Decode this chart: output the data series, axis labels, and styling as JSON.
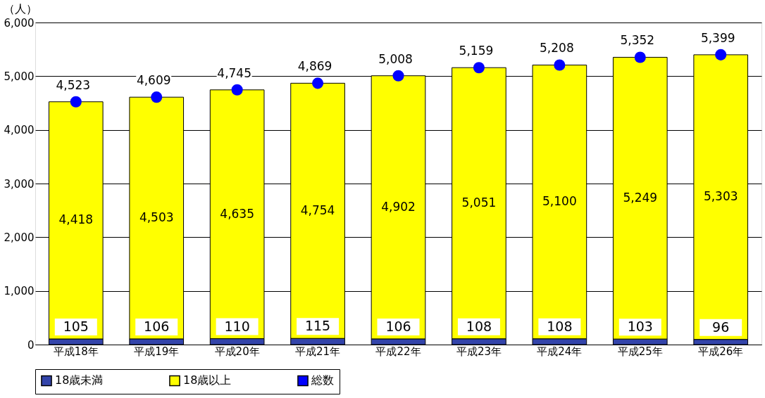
{
  "chart_data": {
    "type": "bar",
    "stacked": true,
    "ylabel": "（人）",
    "categories": [
      "平成18年",
      "平成19年",
      "平成20年",
      "平成21年",
      "平成22年",
      "平成23年",
      "平成24年",
      "平成25年",
      "平成26年"
    ],
    "series": [
      {
        "name": "18歳未満",
        "color": "#3344aa",
        "values": [
          105,
          106,
          110,
          115,
          106,
          108,
          108,
          103,
          96
        ],
        "value_labels": [
          "105",
          "106",
          "110",
          "115",
          "106",
          "108",
          "108",
          "103",
          "96"
        ]
      },
      {
        "name": "18歳以上",
        "color": "#ffff00",
        "values": [
          4418,
          4503,
          4635,
          4754,
          4902,
          5051,
          5100,
          5249,
          5303
        ],
        "value_labels": [
          "4,418",
          "4,503",
          "4,635",
          "4,754",
          "4,902",
          "5,051",
          "5,100",
          "5,249",
          "5,303"
        ]
      },
      {
        "name": "総数",
        "type": "scatter",
        "color": "#0000ff",
        "marker": "circle",
        "values": [
          4523,
          4609,
          4745,
          4869,
          5008,
          5159,
          5208,
          5352,
          5399
        ],
        "value_labels": [
          "4,523",
          "4,609",
          "4,745",
          "4,869",
          "5,008",
          "5,159",
          "5,208",
          "5,352",
          "5,399"
        ]
      }
    ],
    "ylim": [
      0,
      6000
    ],
    "yticks": [
      0,
      {
        "value": 1000,
        "label": "1,000"
      },
      {
        "value": 2000,
        "label": "2,000"
      },
      {
        "value": 3000,
        "label": "3,000"
      },
      {
        "value": 4000,
        "label": "4,000"
      },
      {
        "value": 5000,
        "label": "5,000"
      },
      {
        "value": 6000,
        "label": "6,000"
      }
    ],
    "grid": "y",
    "legend": "bottom"
  }
}
